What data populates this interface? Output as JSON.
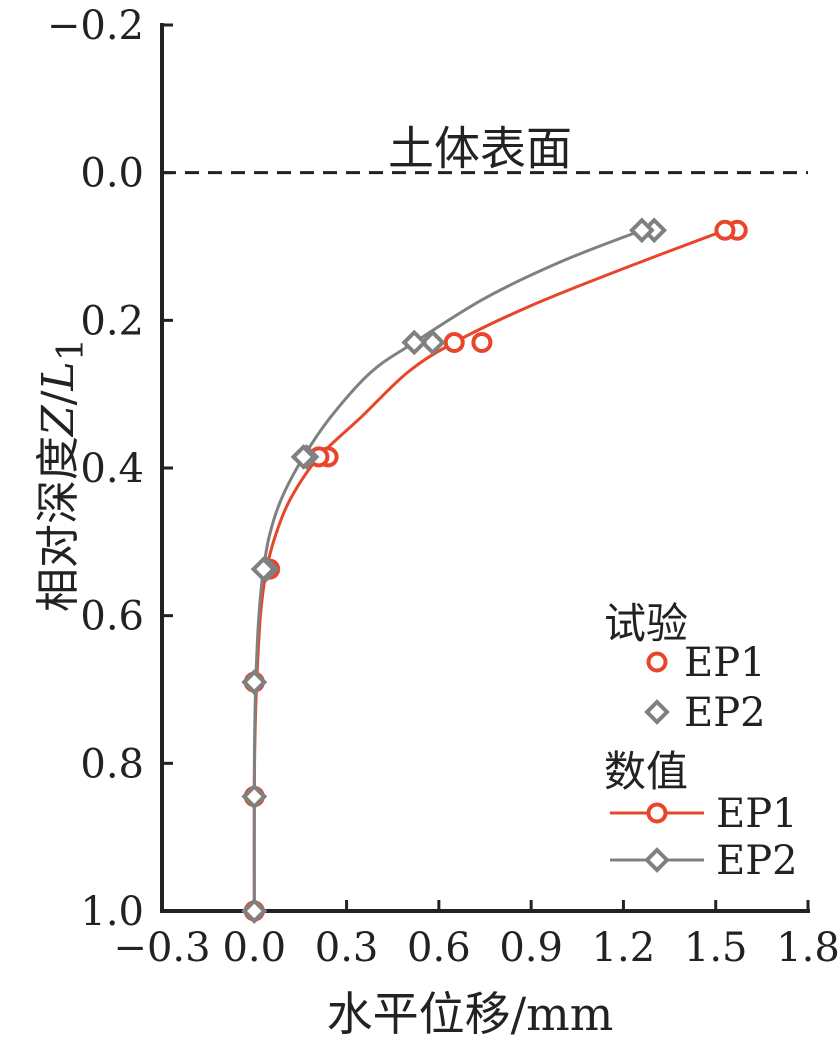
{
  "chart_data": {
    "type": "line",
    "xlabel": "水平位移/mm",
    "ylabel": "相对深度Z/L1",
    "ylabel_parts": {
      "prefix": "相对深度",
      "italic": "Z",
      "slash": "/",
      "italic2": "L",
      "sub": "1"
    },
    "xlim": [
      -0.3,
      1.8
    ],
    "ylim": [
      1.0,
      -0.2
    ],
    "y_inverted": true,
    "xticks": [
      -0.3,
      0.0,
      0.3,
      0.6,
      0.9,
      1.2,
      1.5,
      1.8
    ],
    "xtick_labels": [
      "−0.3",
      "0.0",
      "0.3",
      "0.6",
      "0.9",
      "1.2",
      "1.5",
      "1.8"
    ],
    "yticks": [
      -0.2,
      0.0,
      0.2,
      0.4,
      0.6,
      0.8,
      1.0
    ],
    "ytick_labels": [
      "−0.2",
      "0.0",
      "0.2",
      "0.4",
      "0.6",
      "0.8",
      "1.0"
    ],
    "grid": false,
    "legend_placement": "bottom-right",
    "annotation": {
      "text": "土体表面",
      "y": 0.0,
      "line": "dashed"
    },
    "legend": {
      "group1_title": "试验",
      "group2_title": "数值",
      "items": [
        {
          "group": 1,
          "label": "EP1",
          "marker": "circle",
          "line": false,
          "color": "#e8452a"
        },
        {
          "group": 1,
          "label": "EP2",
          "marker": "diamond",
          "line": false,
          "color": "#808080"
        },
        {
          "group": 2,
          "label": "EP1",
          "marker": "circle",
          "line": true,
          "color": "#e8452a"
        },
        {
          "group": 2,
          "label": "EP2",
          "marker": "diamond",
          "line": true,
          "color": "#808080"
        }
      ]
    },
    "series": [
      {
        "group": "试验",
        "name": "EP1",
        "marker": "circle",
        "color": "#e8452a",
        "line": false,
        "points": [
          [
            1.57,
            0.078
          ],
          [
            0.74,
            0.23
          ],
          [
            0.24,
            0.385
          ],
          [
            0.05,
            0.537
          ],
          [
            0.0,
            0.69
          ],
          [
            0.0,
            0.845
          ],
          [
            0.0,
            1.0
          ]
        ]
      },
      {
        "group": "数值",
        "name": "EP1",
        "marker": "circle",
        "color": "#e8452a",
        "line": true,
        "points": [
          [
            1.53,
            0.078
          ],
          [
            0.65,
            0.23
          ],
          [
            0.21,
            0.385
          ],
          [
            0.04,
            0.537
          ],
          [
            0.0,
            0.69
          ],
          [
            0.0,
            0.845
          ],
          [
            0.0,
            1.0
          ]
        ],
        "curve": [
          [
            1.53,
            0.078
          ],
          [
            1.2,
            0.13
          ],
          [
            0.9,
            0.18
          ],
          [
            0.65,
            0.23
          ],
          [
            0.5,
            0.27
          ],
          [
            0.35,
            0.33
          ],
          [
            0.21,
            0.385
          ],
          [
            0.12,
            0.44
          ],
          [
            0.07,
            0.49
          ],
          [
            0.04,
            0.537
          ],
          [
            0.02,
            0.6
          ],
          [
            0.008,
            0.69
          ],
          [
            0.002,
            0.77
          ],
          [
            0.0,
            0.845
          ],
          [
            0.0,
            1.0
          ]
        ]
      },
      {
        "group": "试验",
        "name": "EP2",
        "marker": "diamond",
        "color": "#808080",
        "line": false,
        "points": [
          [
            1.3,
            0.078
          ],
          [
            0.58,
            0.23
          ],
          [
            0.17,
            0.385
          ],
          [
            0.04,
            0.537
          ],
          [
            0.0,
            0.69
          ],
          [
            0.0,
            0.845
          ],
          [
            0.0,
            1.0
          ]
        ]
      },
      {
        "group": "数值",
        "name": "EP2",
        "marker": "diamond",
        "color": "#808080",
        "line": true,
        "points": [
          [
            1.26,
            0.078
          ],
          [
            0.52,
            0.23
          ],
          [
            0.16,
            0.385
          ],
          [
            0.03,
            0.537
          ],
          [
            0.0,
            0.69
          ],
          [
            0.0,
            0.845
          ],
          [
            0.0,
            1.0
          ]
        ],
        "curve": [
          [
            1.26,
            0.078
          ],
          [
            1.0,
            0.12
          ],
          [
            0.75,
            0.17
          ],
          [
            0.52,
            0.23
          ],
          [
            0.38,
            0.27
          ],
          [
            0.25,
            0.33
          ],
          [
            0.16,
            0.385
          ],
          [
            0.09,
            0.44
          ],
          [
            0.05,
            0.49
          ],
          [
            0.03,
            0.537
          ],
          [
            0.015,
            0.6
          ],
          [
            0.005,
            0.69
          ],
          [
            0.001,
            0.77
          ],
          [
            0.0,
            0.845
          ],
          [
            0.0,
            1.0
          ]
        ]
      }
    ]
  }
}
